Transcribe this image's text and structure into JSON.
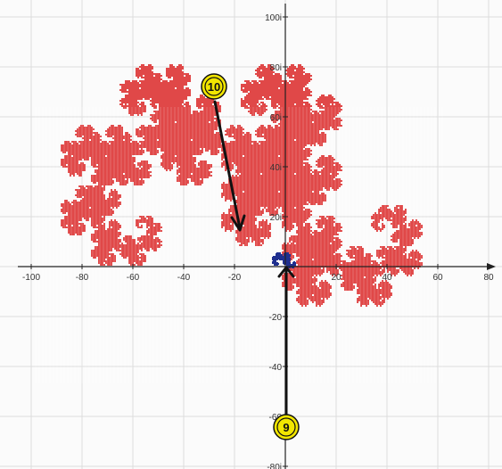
{
  "plot": {
    "x_tick_labels": [
      "-100",
      "-80",
      "-60",
      "-40",
      "-20",
      "20",
      "40",
      "60",
      "80"
    ],
    "y_tick_labels": [
      "100i",
      "80i",
      "60i",
      "40i",
      "20i",
      "-20",
      "-40",
      "-60",
      "-80i"
    ],
    "fractal_color": "#e04848",
    "small_set_color": "#1f2f8f",
    "grid_color": "#dcdcdc",
    "axis_color": "#222222"
  },
  "markers": [
    {
      "label": "10",
      "fill": "#f2e600"
    },
    {
      "label": "9",
      "fill": "#f2e600"
    }
  ]
}
